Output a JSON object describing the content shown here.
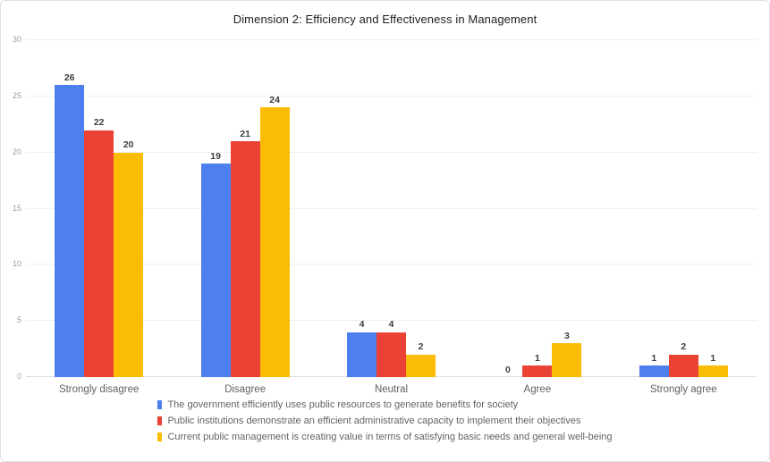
{
  "chart_data": {
    "type": "bar",
    "title": "Dimension 2: Efficiency and Effectiveness in Management",
    "categories": [
      "Strongly disagree",
      "Disagree",
      "Neutral",
      "Agree",
      "Strongly agree"
    ],
    "series": [
      {
        "name": "The government efficiently uses public resources to generate benefits for society",
        "color": "#4D7FEF",
        "values": [
          26,
          19,
          4,
          0,
          1
        ]
      },
      {
        "name": "Public institutions demonstrate an efficient administrative capacity to implement their objectives",
        "color": "#EA4335",
        "values": [
          22,
          21,
          4,
          1,
          2
        ]
      },
      {
        "name": "Current public management is creating value in terms of satisfying basic needs and general well-being",
        "color": "#FBBC04",
        "values": [
          20,
          24,
          2,
          3,
          1
        ]
      }
    ],
    "xlabel": "",
    "ylabel": "",
    "ylim": [
      0,
      30
    ],
    "yticks": [
      0,
      5,
      10,
      15,
      20,
      25,
      30
    ],
    "grid": true,
    "legend_position": "bottom",
    "value_labels": true
  }
}
